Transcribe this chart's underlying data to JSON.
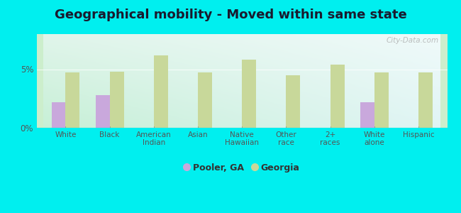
{
  "title": "Geographical mobility - Moved within same state",
  "categories": [
    "White",
    "Black",
    "American\nIndian",
    "Asian",
    "Native\nHawaiian",
    "Other\nrace",
    "2+\nraces",
    "White\nalone",
    "Hispanic"
  ],
  "pooler_values": [
    2.2,
    2.8,
    0.0,
    0.0,
    0.0,
    0.0,
    0.0,
    2.2,
    0.0
  ],
  "georgia_values": [
    4.7,
    4.8,
    6.2,
    4.7,
    5.8,
    4.5,
    5.4,
    4.7,
    4.7
  ],
  "pooler_color": "#c9a8dc",
  "georgia_color": "#c8d89a",
  "bar_width": 0.32,
  "ylim": [
    0,
    8
  ],
  "yticks": [
    0,
    5
  ],
  "ytick_labels": [
    "0%",
    "5%"
  ],
  "grad_color_topleft": "#daeeda",
  "grad_color_topright": "#e8f4f4",
  "grad_color_bottomleft": "#b8e8c8",
  "grad_color_bottomright": "#d8eef0",
  "figure_bg": "#00efef",
  "title_fontsize": 13,
  "title_color": "#1a1a2e",
  "legend_labels": [
    "Pooler, GA",
    "Georgia"
  ],
  "watermark": "City-Data.com",
  "axis_line_color": "#555555",
  "tick_color": "#555555"
}
